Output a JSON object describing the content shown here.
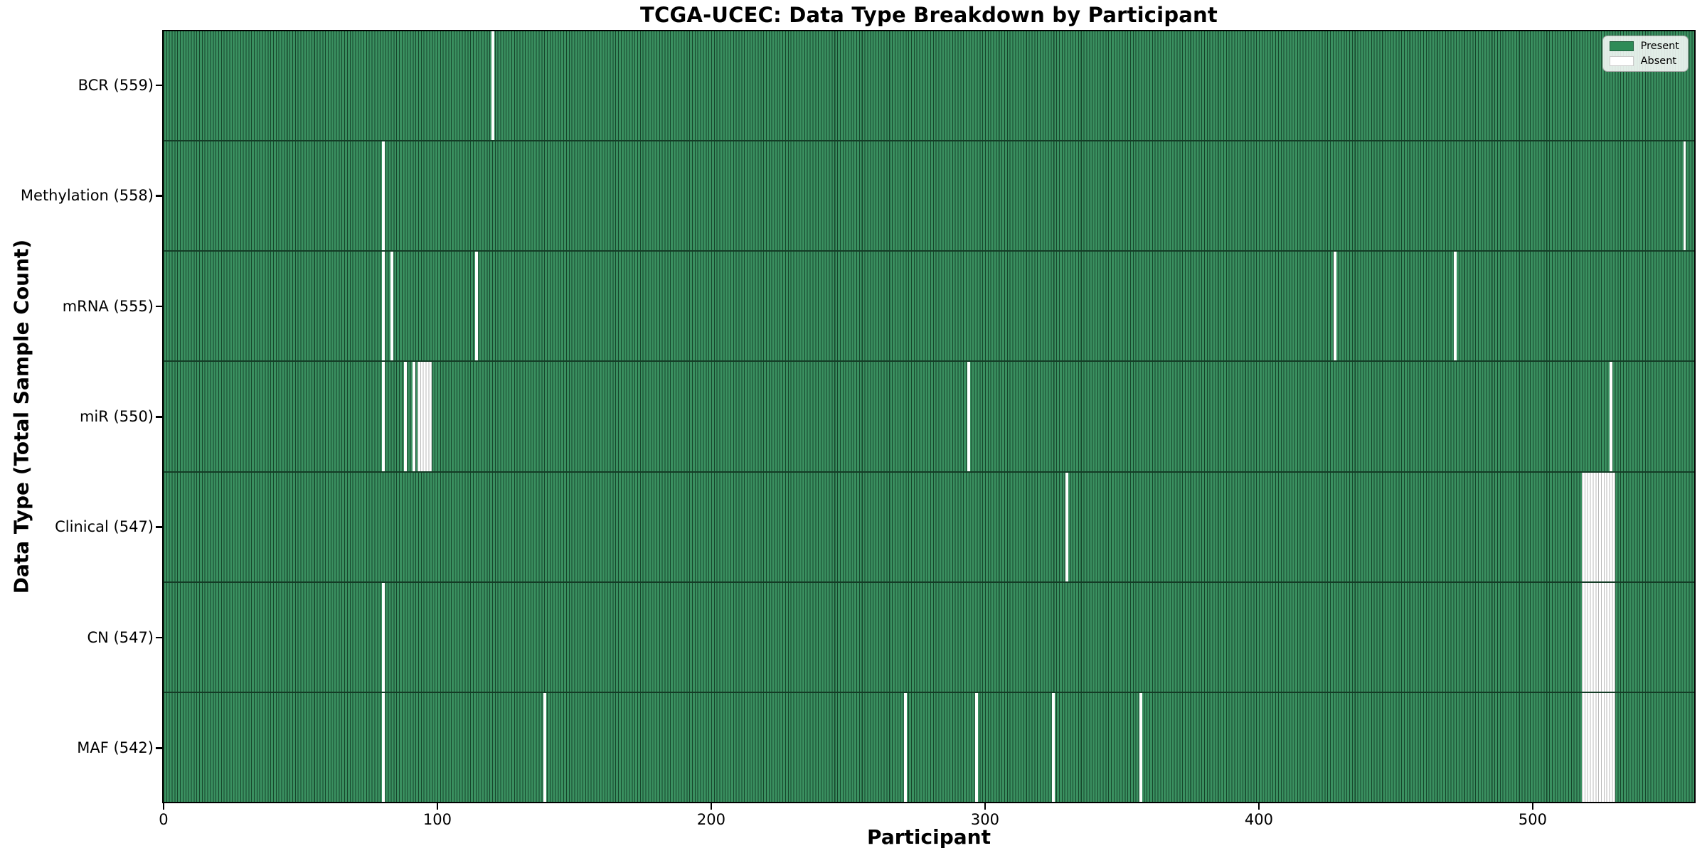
{
  "chart_data": {
    "type": "heatmap",
    "title": "TCGA-UCEC: Data Type Breakdown by Participant",
    "xlabel": "Participant",
    "ylabel": "Data Type (Total Sample Count)",
    "n_participants": 560,
    "x_ticks": [
      0,
      100,
      200,
      300,
      400,
      500
    ],
    "grid": false,
    "colors": {
      "present_fill": "#3a9060",
      "present_legend": "#2e8b57",
      "bar_edge": "#16452b",
      "absent_fill": "#ffffff",
      "absent_edge": "#b9b9b9",
      "spine": "#000000"
    },
    "legend": {
      "position": "upper right",
      "entries": [
        {
          "label": "Present",
          "color": "#2e8b57"
        },
        {
          "label": "Absent",
          "color": "#ffffff"
        }
      ]
    },
    "rows": [
      {
        "label": "BCR (559)",
        "data_type": "BCR",
        "present_count": 559,
        "absent_participant_ranges": [
          [
            120,
            120
          ]
        ]
      },
      {
        "label": "Methylation (558)",
        "data_type": "Methylation",
        "present_count": 558,
        "absent_participant_ranges": [
          [
            80,
            80
          ],
          [
            556,
            556
          ]
        ]
      },
      {
        "label": "mRNA (555)",
        "data_type": "mRNA",
        "present_count": 555,
        "absent_participant_ranges": [
          [
            80,
            80
          ],
          [
            83,
            83
          ],
          [
            114,
            114
          ],
          [
            428,
            428
          ],
          [
            472,
            472
          ]
        ]
      },
      {
        "label": "miR (550)",
        "data_type": "miR",
        "present_count": 550,
        "absent_participant_ranges": [
          [
            80,
            80
          ],
          [
            88,
            88
          ],
          [
            91,
            91
          ],
          [
            93,
            97
          ],
          [
            294,
            294
          ],
          [
            529,
            529
          ]
        ]
      },
      {
        "label": "Clinical (547)",
        "data_type": "Clinical",
        "present_count": 547,
        "absent_participant_ranges": [
          [
            330,
            330
          ],
          [
            519,
            530
          ]
        ]
      },
      {
        "label": "CN (547)",
        "data_type": "CN",
        "present_count": 547,
        "absent_participant_ranges": [
          [
            80,
            80
          ],
          [
            519,
            530
          ]
        ]
      },
      {
        "label": "MAF (542)",
        "data_type": "MAF",
        "present_count": 542,
        "absent_participant_ranges": [
          [
            80,
            80
          ],
          [
            139,
            139
          ],
          [
            271,
            271
          ],
          [
            297,
            297
          ],
          [
            325,
            325
          ],
          [
            357,
            357
          ],
          [
            519,
            530
          ]
        ]
      }
    ]
  }
}
